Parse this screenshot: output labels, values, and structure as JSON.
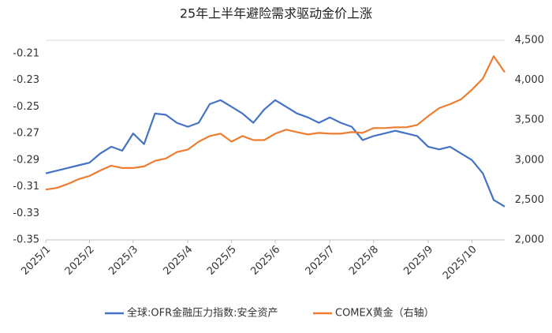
{
  "chart_data": {
    "type": "line",
    "title": "25年上半年避险需求驱动金价上涨",
    "categories": [
      "2025/1",
      null,
      null,
      null,
      "2025/2",
      null,
      null,
      null,
      "2025/3",
      null,
      null,
      null,
      null,
      "2025/4",
      null,
      null,
      null,
      "2025/5",
      null,
      null,
      null,
      "2025/6",
      null,
      null,
      null,
      null,
      "2025/7",
      null,
      null,
      null,
      "2025/8",
      null,
      null,
      null,
      null,
      "2025/9",
      null,
      null,
      null,
      "2025/10",
      null,
      null,
      null
    ],
    "series": [
      {
        "name": "全球:OFR金融压力指数:安全资产",
        "color": "#4472c4",
        "axis": "y",
        "values": [
          -0.3,
          -0.298,
          -0.296,
          -0.294,
          -0.292,
          -0.285,
          -0.28,
          -0.283,
          -0.27,
          -0.278,
          -0.255,
          -0.256,
          -0.262,
          -0.265,
          -0.262,
          -0.248,
          -0.245,
          -0.25,
          -0.255,
          -0.262,
          -0.252,
          -0.245,
          -0.25,
          -0.255,
          -0.258,
          -0.262,
          -0.258,
          -0.262,
          -0.265,
          -0.275,
          -0.272,
          -0.27,
          -0.268,
          -0.27,
          -0.272,
          -0.28,
          -0.282,
          -0.28,
          -0.285,
          -0.29,
          -0.3,
          -0.32,
          -0.325
        ]
      },
      {
        "name": "COMEX黄金（右轴）",
        "color": "#ed7d31",
        "axis": "y2",
        "values": [
          2630,
          2650,
          2700,
          2760,
          2800,
          2870,
          2930,
          2900,
          2900,
          2920,
          2990,
          3020,
          3100,
          3130,
          3230,
          3300,
          3330,
          3230,
          3300,
          3250,
          3250,
          3330,
          3380,
          3350,
          3320,
          3340,
          3330,
          3330,
          3350,
          3340,
          3400,
          3400,
          3410,
          3410,
          3440,
          3550,
          3650,
          3700,
          3760,
          3880,
          4020,
          4300,
          4100
        ]
      }
    ],
    "ylim": [
      -0.35,
      -0.2
    ],
    "yticks": [
      -0.35,
      -0.33,
      -0.31,
      -0.29,
      -0.27,
      -0.25,
      -0.23,
      -0.21
    ],
    "y2lim": [
      2000,
      4500
    ],
    "y2ticks": [
      {
        "value": 2000,
        "label": "2,000"
      },
      {
        "value": 2500,
        "label": "2,500"
      },
      {
        "value": 3000,
        "label": "3,000"
      },
      {
        "value": 3500,
        "label": "3,500"
      },
      {
        "value": 4000,
        "label": "4,000"
      },
      {
        "value": 4500,
        "label": "4,500"
      }
    ],
    "grid": false,
    "legend": "bottom"
  }
}
